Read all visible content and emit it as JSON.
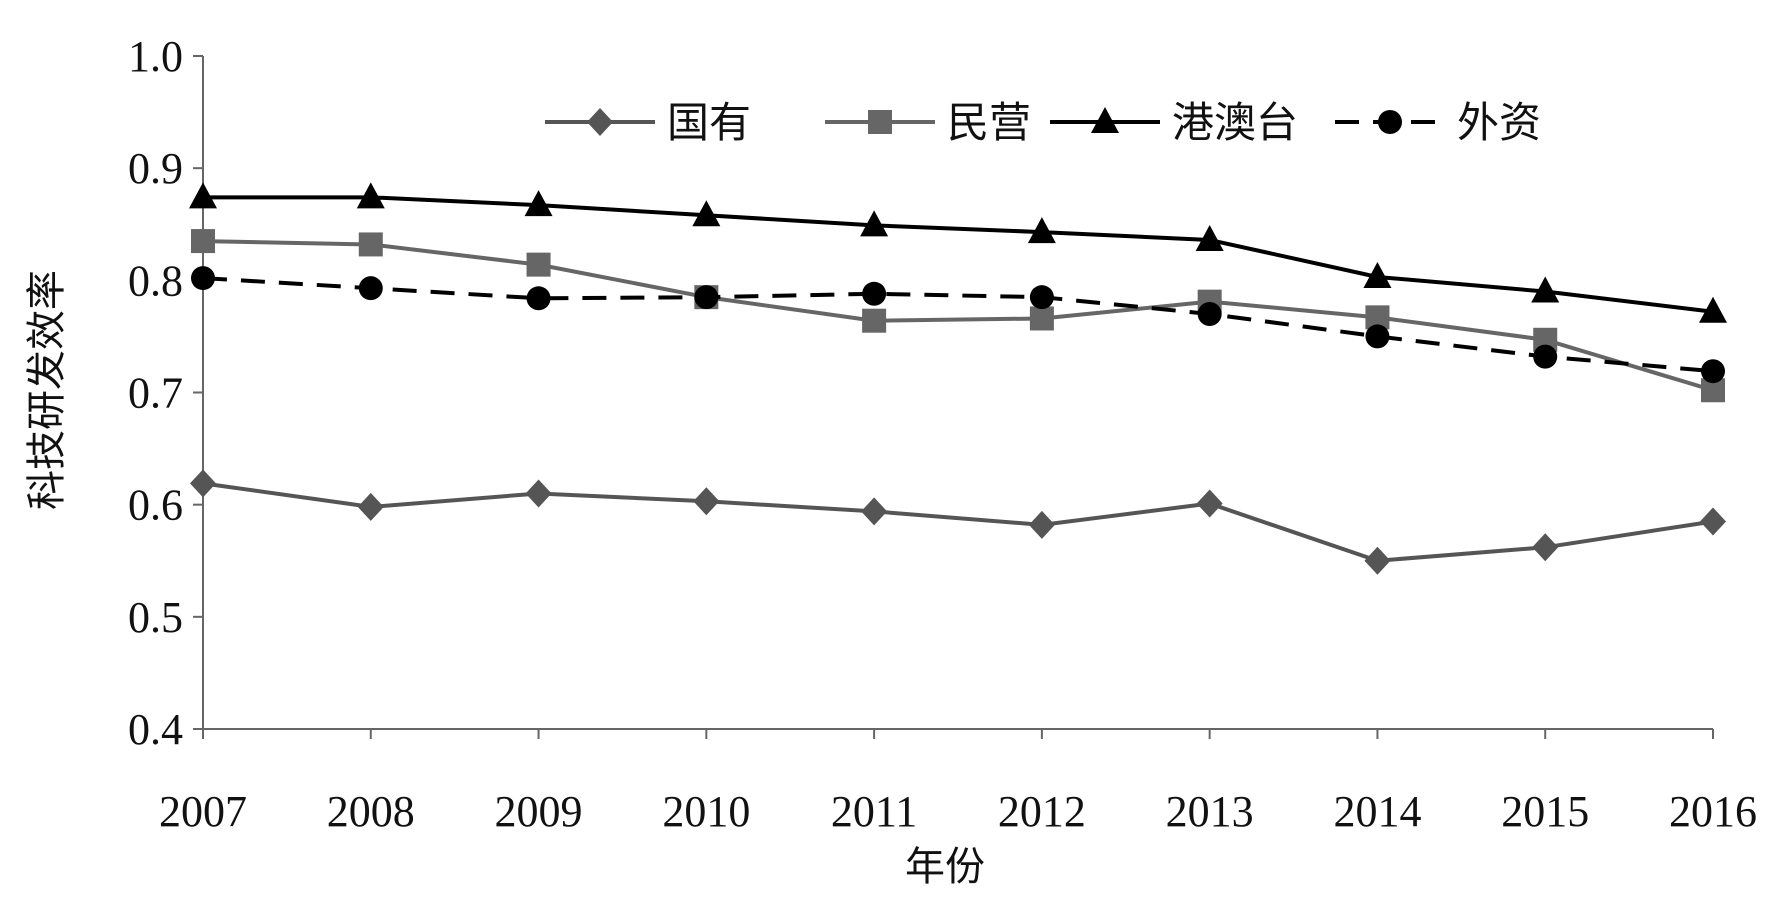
{
  "chart_data": {
    "type": "line",
    "title": "",
    "xlabel": "年份",
    "ylabel": "科技研发效率",
    "x": [
      2007,
      2008,
      2009,
      2010,
      2011,
      2012,
      2013,
      2014,
      2015,
      2016
    ],
    "ylim": [
      0.4,
      1.0
    ],
    "yticks": [
      "0.4",
      "0.5",
      "0.6",
      "0.7",
      "0.8",
      "0.9",
      "1.0"
    ],
    "grid": false,
    "legend_position": "top",
    "series": [
      {
        "name": "国有",
        "marker": "diamond",
        "color": "#555555",
        "dash": "solid",
        "values": [
          0.619,
          0.598,
          0.61,
          0.603,
          0.594,
          0.582,
          0.601,
          0.55,
          0.562,
          0.585
        ]
      },
      {
        "name": "民营",
        "marker": "square",
        "color": "#666666",
        "dash": "solid",
        "values": [
          0.835,
          0.832,
          0.814,
          0.785,
          0.764,
          0.766,
          0.781,
          0.767,
          0.747,
          0.702
        ]
      },
      {
        "name": "港澳台",
        "marker": "triangle",
        "color": "#000000",
        "dash": "solid",
        "values": [
          0.874,
          0.874,
          0.867,
          0.858,
          0.849,
          0.843,
          0.836,
          0.803,
          0.79,
          0.772
        ]
      },
      {
        "name": "外资",
        "marker": "circle",
        "color": "#000000",
        "dash": "dashed",
        "values": [
          0.802,
          0.793,
          0.784,
          0.785,
          0.788,
          0.785,
          0.77,
          0.75,
          0.732,
          0.719
        ]
      }
    ]
  }
}
